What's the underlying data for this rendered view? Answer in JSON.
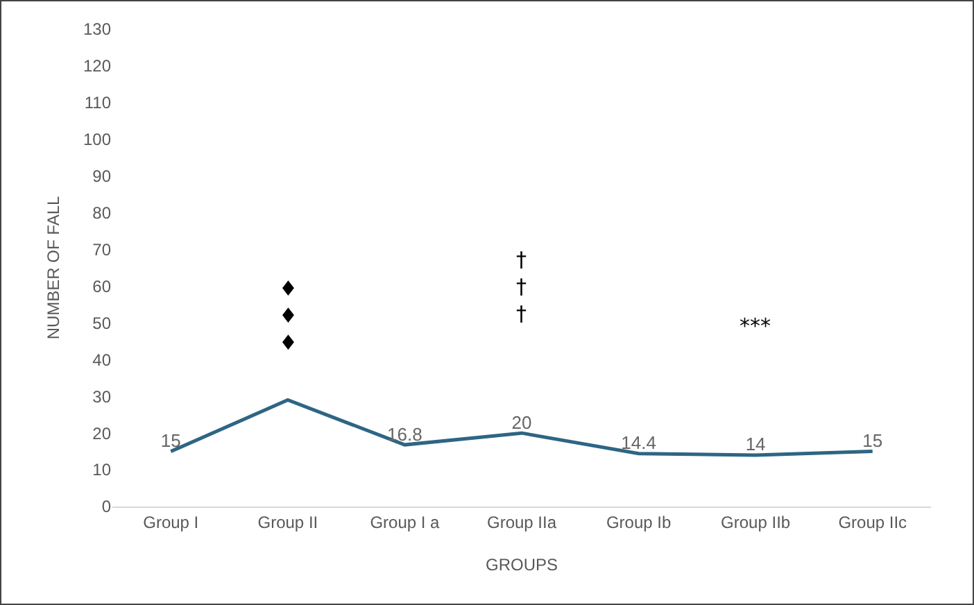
{
  "chart_data": {
    "type": "line",
    "xlabel": "GROUPS",
    "ylabel": "NUMBER OF FALL",
    "categories": [
      "Group I",
      "Group II",
      "Group I a",
      "Group IIa",
      "Group Ib",
      "Group IIb",
      "Group IIc"
    ],
    "series": [
      {
        "color": "#2e6584",
        "values": [
          15,
          29,
          16.8,
          20,
          14.4,
          14,
          15
        ],
        "value_labels": [
          "15",
          null,
          "16.8",
          "20",
          "14.4",
          "14",
          "15"
        ]
      }
    ],
    "ylim": [
      0,
      130
    ],
    "yticks": [
      0,
      10,
      20,
      30,
      40,
      50,
      60,
      70,
      80,
      90,
      100,
      110,
      120,
      130
    ],
    "grid": false,
    "marker": "none",
    "line_style": "solid",
    "annotations": [
      "♦\n♦\n♦",
      "†\n†\n†",
      "***"
    ]
  }
}
